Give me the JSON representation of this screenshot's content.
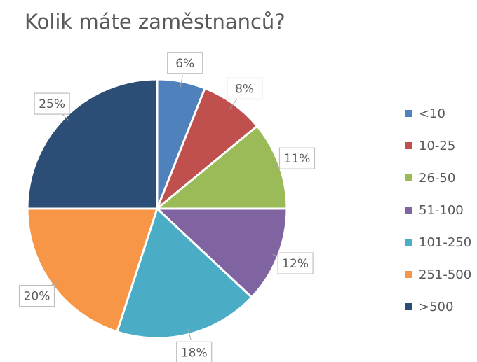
{
  "chart_data": {
    "type": "pie",
    "title": "Kolik máte zaměstnanců?",
    "categories": [
      "<10",
      "10-25",
      "26-50",
      "51-100",
      "101-250",
      "251-500",
      ">500"
    ],
    "values": [
      6,
      8,
      11,
      12,
      18,
      20,
      25
    ],
    "value_labels": [
      "6%",
      "8%",
      "11%",
      "12%",
      "18%",
      "20%",
      "25%"
    ],
    "colors": [
      "#4f81bd",
      "#c0504d",
      "#9bbb59",
      "#8064a2",
      "#4bacc6",
      "#f79646",
      "#2c4d75"
    ],
    "legend": "right"
  }
}
